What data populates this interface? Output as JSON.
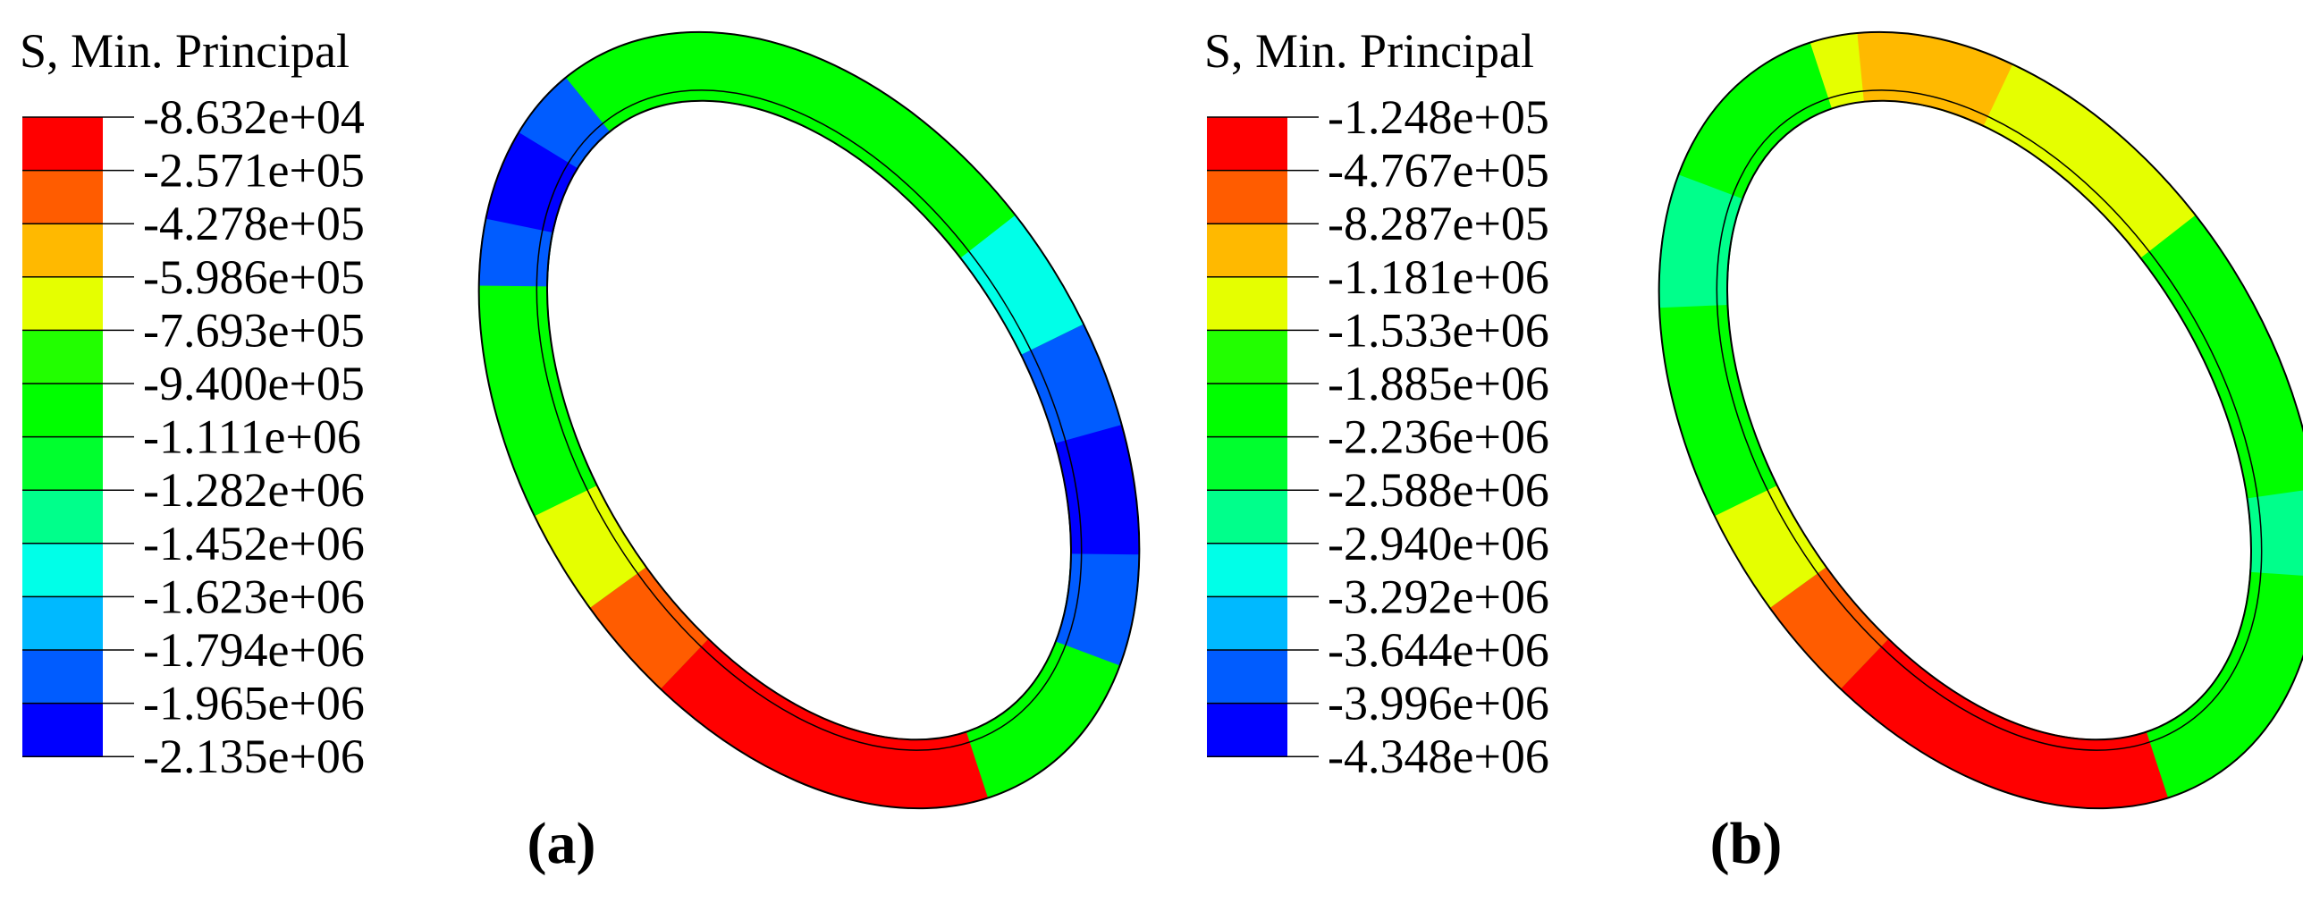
{
  "panels": [
    {
      "legend": {
        "title": "S, Min. Principal",
        "labels": [
          "-8.632e+04",
          "-2.571e+05",
          "-4.278e+05",
          "-5.986e+05",
          "-7.693e+05",
          "-9.400e+05",
          "-1.111e+06",
          "-1.282e+06",
          "-1.452e+06",
          "-1.623e+06",
          "-1.794e+06",
          "-1.965e+06",
          "-2.135e+06"
        ]
      },
      "caption": "(a)"
    },
    {
      "legend": {
        "title": "S, Min. Principal",
        "labels": [
          "-1.248e+05",
          "-4.767e+05",
          "-8.287e+05",
          "-1.181e+06",
          "-1.533e+06",
          "-1.885e+06",
          "-2.236e+06",
          "-2.588e+06",
          "-2.940e+06",
          "-3.292e+06",
          "-3.644e+06",
          "-3.996e+06",
          "-4.348e+06"
        ]
      },
      "caption": "(b)"
    }
  ],
  "colors": [
    "#ff0000",
    "#ff5c00",
    "#ffb900",
    "#e5ff00",
    "#22ff00",
    "#00ff00",
    "#00ff2e",
    "#00ff8b",
    "#00ffe8",
    "#00b9ff",
    "#005cff",
    "#0000ff"
  ]
}
